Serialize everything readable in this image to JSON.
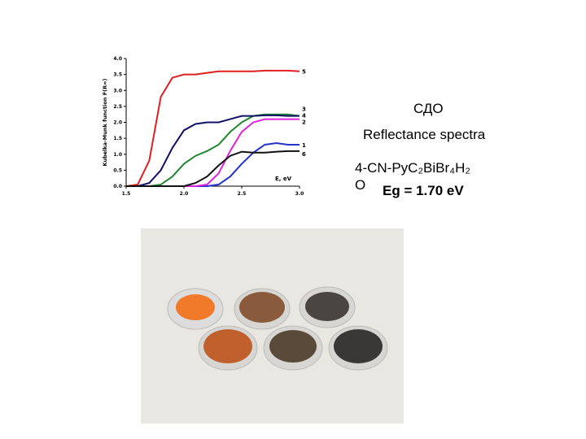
{
  "chart_data": {
    "type": "line",
    "xlabel": "E, eV",
    "ylabel": "Kubelka-Munk function F(R∞)",
    "x": [
      1.5,
      1.6,
      1.7,
      1.8,
      1.9,
      2.0,
      2.1,
      2.2,
      2.3,
      2.4,
      2.5,
      2.6,
      2.7,
      2.8,
      2.9,
      3.0
    ],
    "xlim": [
      1.5,
      3.0
    ],
    "xticks": [
      1.5,
      {
        "value": 2.0,
        "label": "2.0"
      },
      2.5,
      {
        "value": 3.0,
        "label": "3.0"
      }
    ],
    "ylim": [
      0,
      4
    ],
    "yticks": [
      {
        "value": 0,
        "label": "0.0"
      },
      0.5,
      {
        "value": 1,
        "label": "1.0"
      },
      1.5,
      {
        "value": 2,
        "label": "2.0"
      },
      2.5,
      {
        "value": 3,
        "label": "3.0"
      },
      3.5,
      {
        "value": 4,
        "label": "4.0"
      }
    ],
    "series": [
      {
        "name": "1",
        "color": "#2233cc",
        "values": [
          0,
          0,
          0,
          0,
          0,
          0,
          0,
          0,
          0.05,
          0.3,
          0.7,
          1.05,
          1.3,
          1.35,
          1.3,
          1.3
        ]
      },
      {
        "name": "2",
        "color": "#dd22dd",
        "values": [
          0,
          0,
          0,
          0,
          0,
          0,
          0,
          0.05,
          0.4,
          1.1,
          1.7,
          2.0,
          2.1,
          2.1,
          2.1,
          2.1
        ]
      },
      {
        "name": "3",
        "color": "#228833",
        "values": [
          0,
          0,
          0,
          0.05,
          0.3,
          0.7,
          0.95,
          1.1,
          1.3,
          1.7,
          2.0,
          2.2,
          2.25,
          2.25,
          2.25,
          2.2
        ]
      },
      {
        "name": "4",
        "color": "#111166",
        "values": [
          0,
          0,
          0.1,
          0.5,
          1.2,
          1.75,
          1.95,
          2.0,
          2.0,
          2.1,
          2.2,
          2.2,
          2.22,
          2.22,
          2.2,
          2.2
        ]
      },
      {
        "name": "5",
        "color": "#e02020",
        "values": [
          0,
          0.05,
          0.8,
          2.8,
          3.4,
          3.5,
          3.5,
          3.55,
          3.6,
          3.6,
          3.6,
          3.6,
          3.62,
          3.62,
          3.62,
          3.6
        ]
      },
      {
        "name": "6",
        "color": "#111111",
        "values": [
          0,
          0,
          0,
          0,
          0,
          0,
          0.1,
          0.3,
          0.65,
          0.95,
          1.08,
          1.05,
          1.05,
          1.08,
          1.1,
          1.1
        ]
      }
    ]
  },
  "texts": {
    "heading": "СДО",
    "subheading": "Reflectance spectra",
    "compound": "4-CN-PyC₂BiBr₄H₂O",
    "gap": "Eg = 1.70 eV"
  }
}
